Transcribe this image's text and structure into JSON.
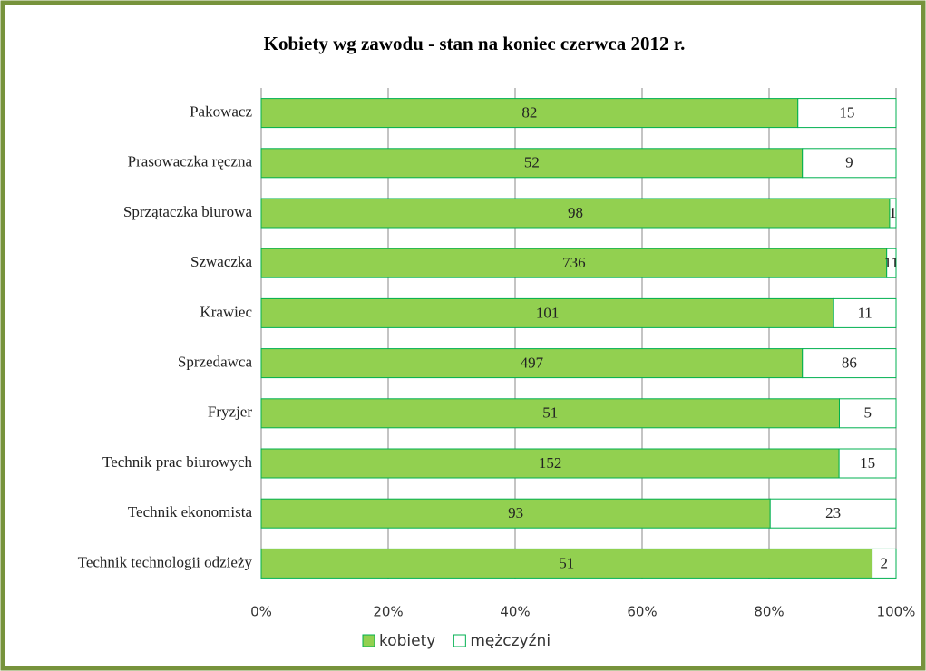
{
  "chart_data": {
    "type": "bar",
    "orientation": "horizontal",
    "stacked": "percent",
    "title": "Kobiety wg zawodu - stan na koniec czerwca 2012 r.",
    "categories": [
      "Pakowacz",
      "Prasowaczka ręczna",
      "Sprzątaczka biurowa",
      "Szwaczka",
      "Krawiec",
      "Sprzedawca",
      "Fryzjer",
      "Technik prac biurowych",
      "Technik ekonomista",
      "Technik technologii odzieży"
    ],
    "series": [
      {
        "name": "kobiety",
        "color": "#92d050",
        "values": [
          82,
          52,
          98,
          736,
          101,
          497,
          51,
          152,
          93,
          51
        ]
      },
      {
        "name": "mężczyźni",
        "color": "#ffffff",
        "values": [
          15,
          9,
          1,
          11,
          11,
          86,
          5,
          15,
          23,
          2
        ]
      }
    ],
    "xlim": [
      0,
      100
    ],
    "xticks": [
      {
        "value": 0,
        "label": "0%"
      },
      {
        "value": 20,
        "label": "20%"
      },
      {
        "value": 40,
        "label": "40%"
      },
      {
        "value": 60,
        "label": "60%"
      },
      {
        "value": 80,
        "label": "80%"
      },
      {
        "value": 100,
        "label": "100%"
      }
    ],
    "grid": true,
    "legend": "bottom"
  }
}
